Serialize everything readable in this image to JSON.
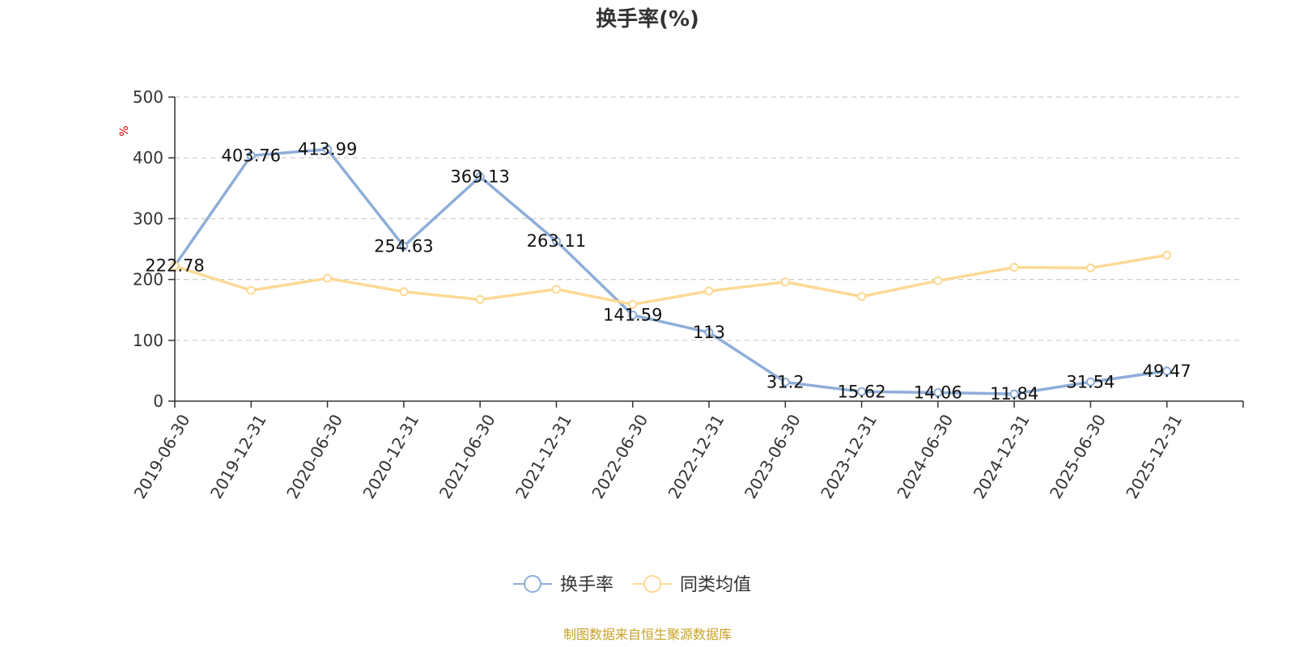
{
  "colors": {
    "series_turnover": "#8eaed8",
    "series_peer_avg": "#fdd995",
    "unit_label": "#e00000",
    "source_text": "#c9a227",
    "grid": "#cccccc",
    "axis": "#333333"
  },
  "chart_data": {
    "type": "line",
    "title": "换手率(%)",
    "ylabel": "%",
    "xlabel": "",
    "ylim": [
      0,
      500
    ],
    "yticks": [
      0,
      100,
      200,
      300,
      400,
      500
    ],
    "grid": true,
    "legend_position": "bottom-center",
    "categories": [
      "2019-06-30",
      "2019-12-31",
      "2020-06-30",
      "2020-12-31",
      "2021-06-30",
      "2021-12-31",
      "2022-06-30",
      "2022-12-31",
      "2023-06-30",
      "2023-12-31",
      "2024-06-30",
      "2024-12-31",
      "2025-06-30",
      "2025-12-31"
    ],
    "series": [
      {
        "name": "换手率",
        "values": [
          222.78,
          403.76,
          413.99,
          254.63,
          369.13,
          263.11,
          141.59,
          113,
          31.2,
          15.62,
          14.06,
          11.84,
          31.54,
          49.47
        ],
        "labels": [
          "222.78",
          "403.76",
          "413.99",
          "254.63",
          "369.13",
          "263.11",
          "141.59",
          "113",
          "31.2",
          "15.62",
          "14.06",
          "11.84",
          "31.54",
          "49.47"
        ]
      },
      {
        "name": "同类均值",
        "values": [
          222,
          182,
          202,
          180,
          167,
          184,
          159,
          181,
          196,
          172,
          198,
          220,
          219,
          240
        ]
      }
    ],
    "source": "制图数据来自恒生聚源数据库"
  }
}
